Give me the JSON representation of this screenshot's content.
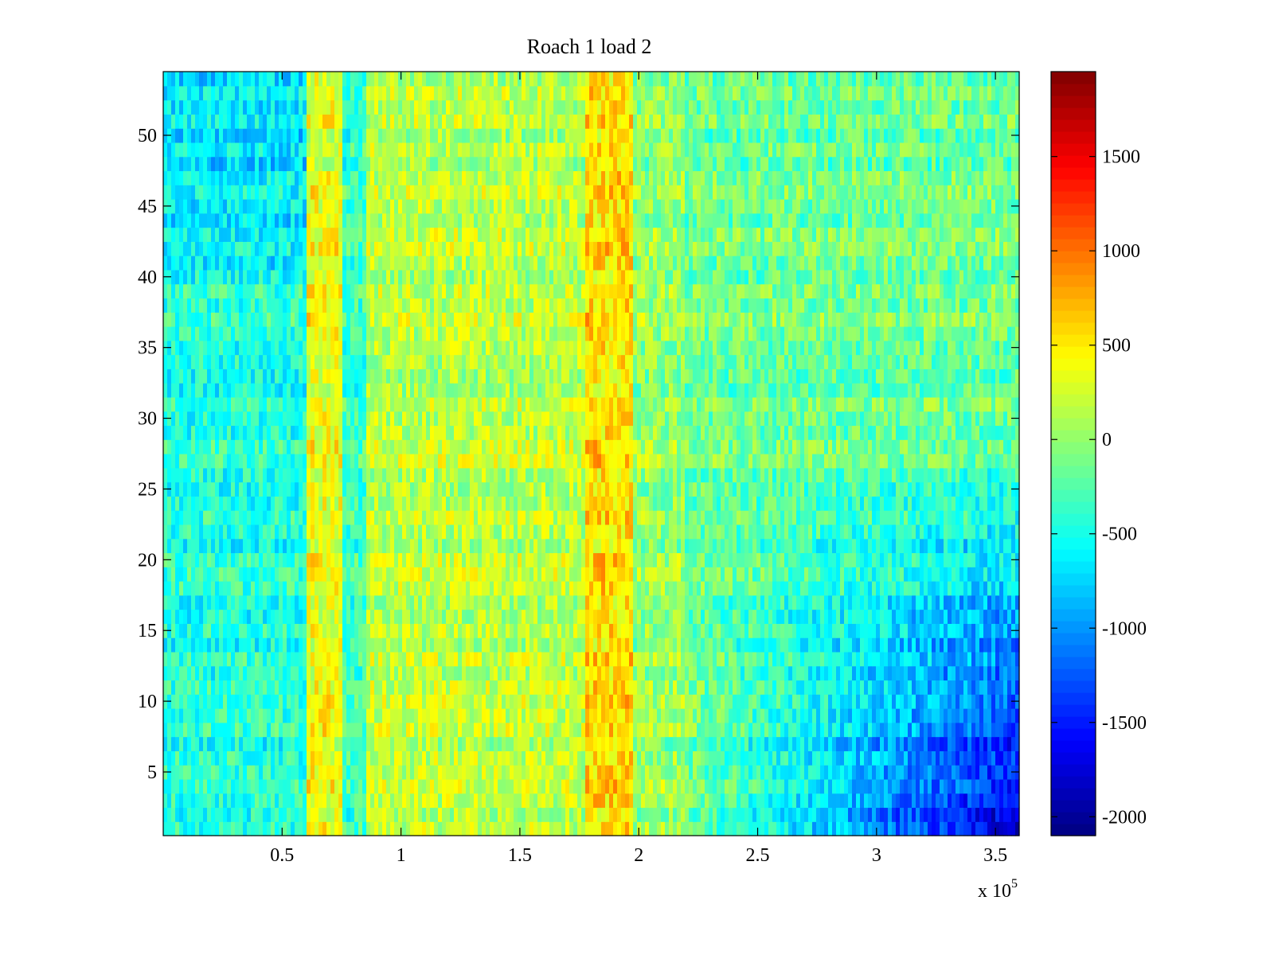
{
  "chart_data": {
    "type": "heatmap",
    "title": "Roach 1 load 2",
    "xlabel": "",
    "ylabel": "",
    "x_multiplier_label": "x 10",
    "x_multiplier_exponent": "5",
    "xlim": [
      0,
      3.6
    ],
    "ylim": [
      0.5,
      54.5
    ],
    "x_ticks": [
      0.5,
      1,
      1.5,
      2,
      2.5,
      3,
      3.5
    ],
    "x_tick_labels": [
      "0.5",
      "1",
      "1.5",
      "2",
      "2.5",
      "3",
      "3.5"
    ],
    "y_ticks": [
      5,
      10,
      15,
      20,
      25,
      30,
      35,
      40,
      45,
      50
    ],
    "y_tick_labels": [
      "5",
      "10",
      "15",
      "20",
      "25",
      "30",
      "35",
      "40",
      "45",
      "50"
    ],
    "rows": 54,
    "colormap": "jet",
    "clim": [
      -2100,
      1950
    ],
    "colorbar_ticks": [
      -2000,
      -1500,
      -1000,
      -500,
      0,
      500,
      1000,
      1500
    ],
    "colorbar_tick_labels": [
      "-2000",
      "-1500",
      "-1000",
      "-500",
      "0",
      "500",
      "1000",
      "1500"
    ],
    "grid": false,
    "column_bands": [
      {
        "x_start": 0.0,
        "x_end": 0.6,
        "level": -450
      },
      {
        "x_start": 0.6,
        "x_end": 0.75,
        "level": 350
      },
      {
        "x_start": 0.75,
        "x_end": 0.85,
        "level": -350
      },
      {
        "x_start": 0.85,
        "x_end": 1.78,
        "level": 150
      },
      {
        "x_start": 1.78,
        "x_end": 1.97,
        "level": 550
      },
      {
        "x_start": 1.97,
        "x_end": 2.2,
        "level": 0
      },
      {
        "x_start": 2.2,
        "x_end": 3.6,
        "level": -150
      }
    ]
  }
}
